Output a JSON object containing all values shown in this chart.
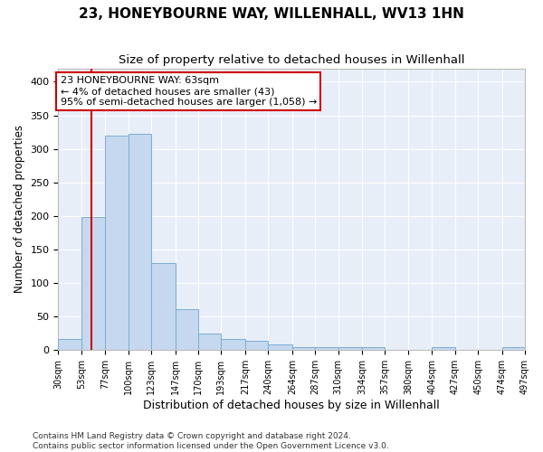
{
  "title": "23, HONEYBOURNE WAY, WILLENHALL, WV13 1HN",
  "subtitle": "Size of property relative to detached houses in Willenhall",
  "xlabel": "Distribution of detached houses by size in Willenhall",
  "ylabel": "Number of detached properties",
  "footer_line1": "Contains HM Land Registry data © Crown copyright and database right 2024.",
  "footer_line2": "Contains public sector information licensed under the Open Government Licence v3.0.",
  "bar_edges": [
    30,
    53,
    77,
    100,
    123,
    147,
    170,
    193,
    217,
    240,
    264,
    287,
    310,
    334,
    357,
    380,
    404,
    427,
    450,
    474,
    497
  ],
  "bar_heights": [
    17,
    198,
    320,
    323,
    130,
    61,
    25,
    16,
    14,
    8,
    5,
    4,
    4,
    4,
    0,
    0,
    4,
    0,
    0,
    5
  ],
  "bar_color": "#c5d8ef",
  "bar_edge_color": "#7aadd4",
  "property_size": 63,
  "vline_color": "#cc0000",
  "annotation_line1": "23 HONEYBOURNE WAY: 63sqm",
  "annotation_line2": "← 4% of detached houses are smaller (43)",
  "annotation_line3": "95% of semi-detached houses are larger (1,058) →",
  "annotation_box_color": "#cc0000",
  "ylim": [
    0,
    420
  ],
  "yticks": [
    0,
    50,
    100,
    150,
    200,
    250,
    300,
    350,
    400
  ],
  "background_color": "#e8eef8",
  "grid_color": "#ffffff",
  "fig_facecolor": "#ffffff",
  "title_fontsize": 11,
  "subtitle_fontsize": 9.5,
  "xlabel_fontsize": 9,
  "ylabel_fontsize": 8.5,
  "tick_fontsize": 7,
  "annotation_fontsize": 8,
  "footer_fontsize": 6.5
}
